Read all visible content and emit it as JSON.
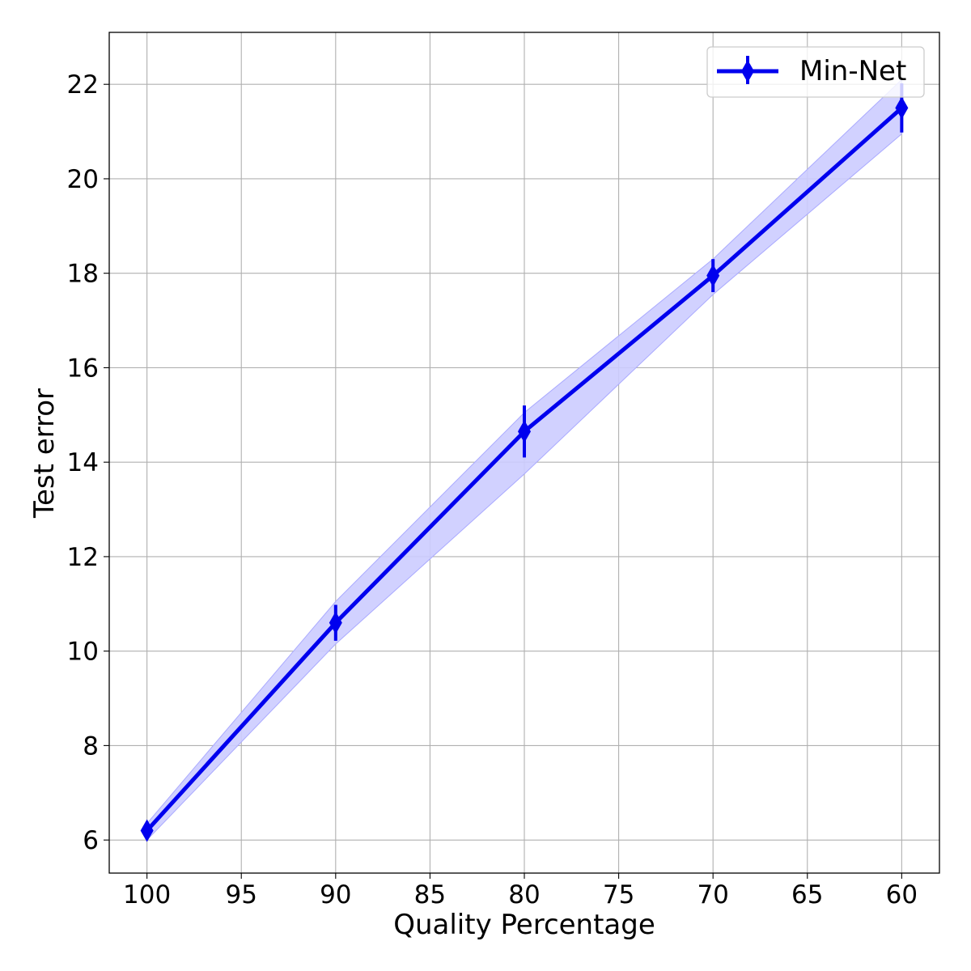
{
  "chart_data": {
    "type": "line",
    "title": "",
    "xlabel": "Quality Percentage",
    "ylabel": "Test error",
    "x_ticks": [
      100,
      95,
      90,
      85,
      80,
      75,
      70,
      65,
      60
    ],
    "y_ticks": [
      6,
      8,
      10,
      12,
      14,
      16,
      18,
      20,
      22
    ],
    "xlim": [
      102,
      58
    ],
    "ylim": [
      5.3,
      23.1
    ],
    "x_axis_direction": "reversed",
    "grid": true,
    "legend_position": "top-right",
    "series": [
      {
        "name": "Min-Net",
        "color": "#0000ee",
        "band_color": "#ccccff",
        "marker": "diamond",
        "x": [
          100,
          90,
          80,
          70,
          60
        ],
        "y": [
          6.2,
          10.6,
          14.65,
          17.95,
          21.5
        ],
        "error": [
          0.15,
          0.38,
          0.55,
          0.35,
          0.52
        ],
        "band_upper": [
          6.35,
          11.05,
          15.05,
          18.3,
          22.1
        ],
        "band_lower": [
          6.0,
          10.15,
          13.75,
          17.55,
          20.95
        ]
      }
    ]
  }
}
